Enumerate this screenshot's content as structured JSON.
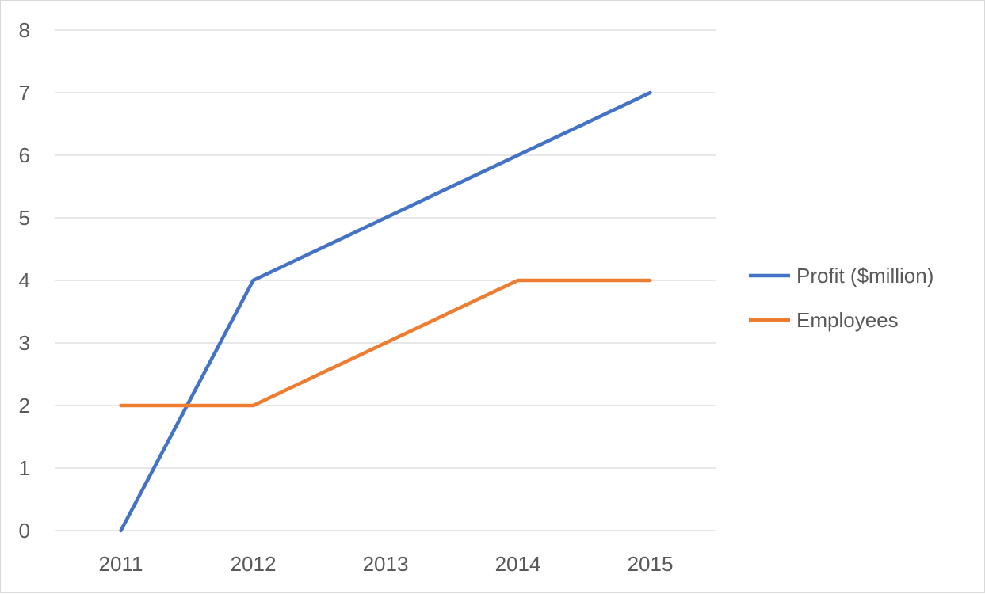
{
  "chart_data": {
    "type": "line",
    "title": "",
    "xlabel": "",
    "ylabel": "",
    "categories": [
      "2011",
      "2012",
      "2013",
      "2014",
      "2015"
    ],
    "ylim": [
      0,
      8
    ],
    "yticks": [
      0,
      1,
      2,
      3,
      4,
      5,
      6,
      7,
      8
    ],
    "grid": true,
    "legend_position": "right",
    "series": [
      {
        "name": "Profit ($million)",
        "color": "#4472c4",
        "values": [
          0,
          4,
          5,
          6,
          7
        ]
      },
      {
        "name": "Employees",
        "color": "#ed7d31",
        "values": [
          2,
          2,
          3,
          4,
          4
        ]
      }
    ]
  }
}
